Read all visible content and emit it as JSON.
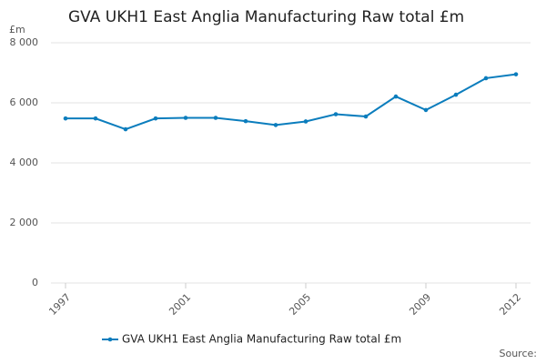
{
  "chart_data": {
    "type": "line",
    "title": "GVA UKH1 East Anglia Manufacturing Raw total £m",
    "y_label": "£m",
    "source": "Source:",
    "x": [
      1997,
      1998,
      1999,
      2000,
      2001,
      2002,
      2003,
      2004,
      2005,
      2006,
      2007,
      2008,
      2009,
      2010,
      2011,
      2012
    ],
    "series": [
      {
        "name": "GVA UKH1 East Anglia Manufacturing Raw total £m",
        "color": "#0b7dbd",
        "values": [
          5480,
          5480,
          5120,
          5480,
          5500,
          5500,
          5390,
          5260,
          5380,
          5620,
          5545,
          6210,
          5760,
          6270,
          6820,
          6950
        ]
      }
    ],
    "xlim": [
      1997,
      2012
    ],
    "xticks": [
      1997,
      2001,
      2005,
      2009,
      2012
    ],
    "ylim": [
      0,
      8000
    ],
    "yticks": [
      0,
      {
        "value": 2000,
        "label": "2 000"
      },
      {
        "value": 4000,
        "label": "4 000"
      },
      {
        "value": 6000,
        "label": "6 000"
      },
      {
        "value": 8000,
        "label": "8 000"
      }
    ],
    "grid": true,
    "legend": "bottom"
  }
}
